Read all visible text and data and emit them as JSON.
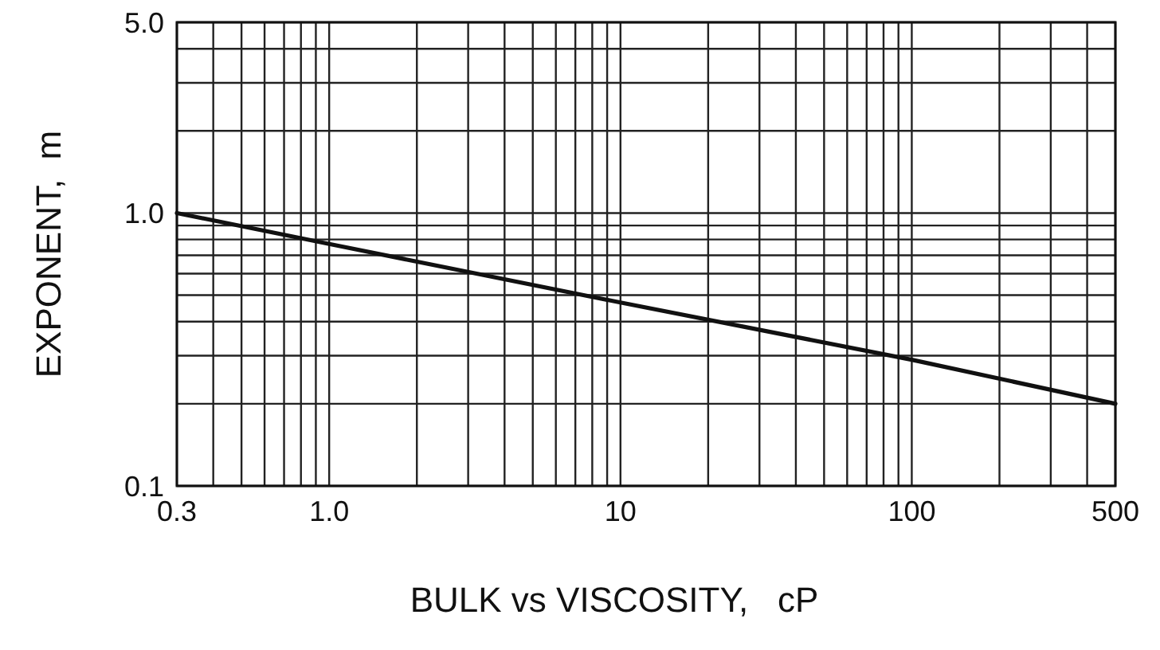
{
  "chart_data": {
    "type": "line",
    "xlabel": "BULK vs VISCOSITY,   cP",
    "ylabel": "EXPONENT,  m",
    "log": "xy",
    "grid": true,
    "marker": "none",
    "line_style": "solid",
    "x": [
      0.3,
      1,
      10,
      100,
      500
    ],
    "series": [
      {
        "color": "#111111",
        "values": [
          1.0,
          0.77,
          0.47,
          0.29,
          0.2
        ]
      }
    ],
    "xlim": [
      0.3,
      500
    ],
    "ylim": [
      0.1,
      5
    ],
    "xticks": [
      {
        "value": 0.3,
        "label": "0.3"
      },
      {
        "value": 0.4,
        "label": null
      },
      {
        "value": 0.5,
        "label": null
      },
      {
        "value": 0.6,
        "label": null
      },
      {
        "value": 0.7,
        "label": null
      },
      {
        "value": 0.8,
        "label": null
      },
      {
        "value": 0.9,
        "label": null
      },
      {
        "value": 1,
        "label": "1.0"
      },
      {
        "value": 2,
        "label": null
      },
      {
        "value": 3,
        "label": null
      },
      {
        "value": 4,
        "label": null
      },
      {
        "value": 5,
        "label": null
      },
      {
        "value": 6,
        "label": null
      },
      {
        "value": 7,
        "label": null
      },
      {
        "value": 8,
        "label": null
      },
      {
        "value": 9,
        "label": null
      },
      10,
      {
        "value": 20,
        "label": null
      },
      {
        "value": 30,
        "label": null
      },
      {
        "value": 40,
        "label": null
      },
      {
        "value": 50,
        "label": null
      },
      {
        "value": 60,
        "label": null
      },
      {
        "value": 70,
        "label": null
      },
      {
        "value": 80,
        "label": null
      },
      {
        "value": 90,
        "label": null
      },
      100,
      {
        "value": 200,
        "label": null
      },
      {
        "value": 300,
        "label": null
      },
      {
        "value": 400,
        "label": null
      },
      500
    ],
    "yticks": [
      {
        "value": 0.1,
        "label": "0.1"
      },
      {
        "value": 0.2,
        "label": null
      },
      {
        "value": 0.3,
        "label": null
      },
      {
        "value": 0.4,
        "label": null
      },
      {
        "value": 0.5,
        "label": null
      },
      {
        "value": 0.6,
        "label": null
      },
      {
        "value": 0.7,
        "label": null
      },
      {
        "value": 0.8,
        "label": null
      },
      {
        "value": 0.9,
        "label": null
      },
      {
        "value": 1,
        "label": "1.0"
      },
      {
        "value": 2,
        "label": null
      },
      {
        "value": 3,
        "label": null
      },
      {
        "value": 4,
        "label": null
      },
      {
        "value": 5,
        "label": "5.0"
      }
    ]
  }
}
